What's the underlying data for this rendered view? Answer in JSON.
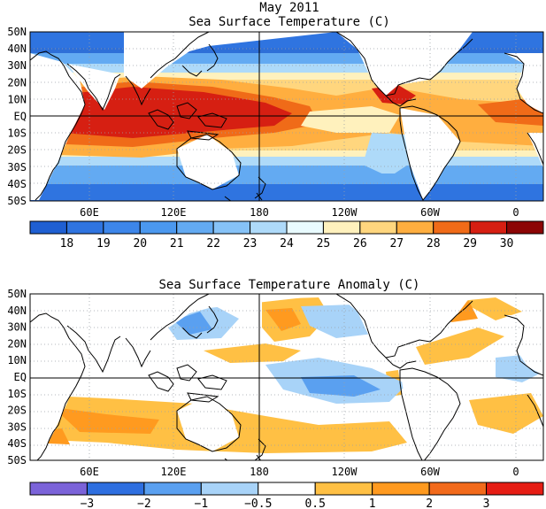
{
  "month_title": "May 2011",
  "colors": {
    "ocean_fill_default": "#ffffff",
    "land": "#ffffff",
    "coast": "#000000",
    "grid": "#9aa0a6",
    "axis": "#000000"
  },
  "icons": [
    "map-frame",
    "coastline-outline",
    "colorbar"
  ],
  "panels": [
    {
      "key": "sst",
      "title": "Sea Surface Temperature (C)",
      "lat_labels": [
        "50N",
        "40N",
        "30N",
        "20N",
        "10N",
        "EQ",
        "10S",
        "20S",
        "30S",
        "40S",
        "50S"
      ],
      "lon_labels": [
        "60E",
        "120E",
        "180",
        "120W",
        "60W",
        "0"
      ],
      "colorbar": {
        "labels": [
          "18",
          "19",
          "20",
          "21",
          "22",
          "23",
          "24",
          "25",
          "26",
          "27",
          "28",
          "29",
          "30"
        ],
        "colors": [
          "#1f5fd2",
          "#2f74e0",
          "#3d86ea",
          "#4b98ef",
          "#63aaf2",
          "#86c2f7",
          "#aedaf9",
          "#e9fbff",
          "#fff1bd",
          "#ffd67e",
          "#ffae3f",
          "#f06b18",
          "#d61f12",
          "#8c0505"
        ]
      }
    },
    {
      "key": "anom",
      "title": "Sea Surface Temperature Anomaly (C)",
      "lat_labels": [
        "50N",
        "40N",
        "30N",
        "20N",
        "10N",
        "EQ",
        "10S",
        "20S",
        "30S",
        "40S",
        "50S"
      ],
      "lon_labels": [
        "60E",
        "120E",
        "180",
        "120W",
        "60W",
        "0"
      ],
      "colorbar": {
        "labels": [
          "−3",
          "−2",
          "−1",
          "−0.5",
          "0.5",
          "1",
          "2",
          "3"
        ],
        "colors": [
          "#7b63d9",
          "#2e6fe0",
          "#5aa0f0",
          "#a8d3f8",
          "#ffffff",
          "#ffc044",
          "#ff9a1f",
          "#f26a1b",
          "#e61d14"
        ]
      }
    }
  ]
}
